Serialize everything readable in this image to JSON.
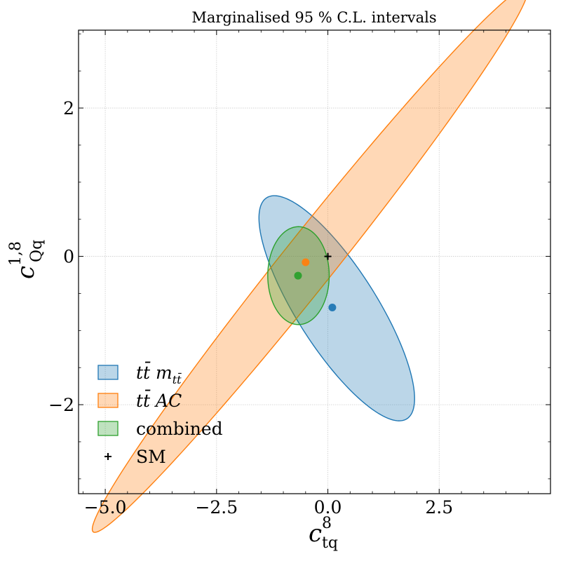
{
  "chart_data": {
    "type": "scatter",
    "title": "Marginalised 95 % C.L. intervals",
    "xlabel": {
      "base": "c",
      "sub": "tq",
      "sup": "8"
    },
    "ylabel": {
      "base": "c",
      "sub": "Qq",
      "sup": "1,8"
    },
    "xlim": [
      -5.6,
      5.0
    ],
    "ylim": [
      -3.2,
      3.05
    ],
    "xticks": [
      -5.0,
      -2.5,
      0.0,
      2.5
    ],
    "xtick_labels": [
      "−5.0",
      "−2.5",
      "0.0",
      "2.5"
    ],
    "yticks": [
      -2,
      0,
      2
    ],
    "ytick_labels": [
      "−2",
      "0",
      "2"
    ],
    "grid": true,
    "legend_position": "lower-left",
    "series": [
      {
        "name": "t t̄ m_{t t̄}",
        "legend_text": "tt̄ m",
        "legend_sub": "tt̄",
        "color": "#1f77b4",
        "fill": "#b7d3e8",
        "ellipse": {
          "center": [
            0.2,
            -0.7
          ],
          "semi_major": 2.2,
          "semi_minor": 0.72,
          "angle_deg": -40
        },
        "best_fit": [
          0.1,
          -0.69
        ]
      },
      {
        "name": "t t̄ AC",
        "legend_text": "tt̄ AC",
        "legend_sub": "",
        "color": "#ff7f0e",
        "fill": "#fdd6b2",
        "ellipse": {
          "center": [
            -0.4,
            -0.05
          ],
          "semi_major": 6.1,
          "semi_minor": 0.45,
          "angle_deg": 36.8
        },
        "best_fit": [
          -0.5,
          -0.08
        ]
      },
      {
        "name": "combined",
        "legend_text": "combined",
        "legend_sub": "",
        "color": "#2ca02c",
        "fill": "#b2dab1",
        "ellipse": {
          "center": [
            -0.66,
            -0.26
          ],
          "semi_major": 0.69,
          "semi_minor": 0.66,
          "angle_deg": 0
        },
        "best_fit": [
          -0.67,
          -0.26
        ]
      }
    ],
    "sm_point": {
      "name": "SM",
      "x": 0.0,
      "y": 0.0
    }
  }
}
